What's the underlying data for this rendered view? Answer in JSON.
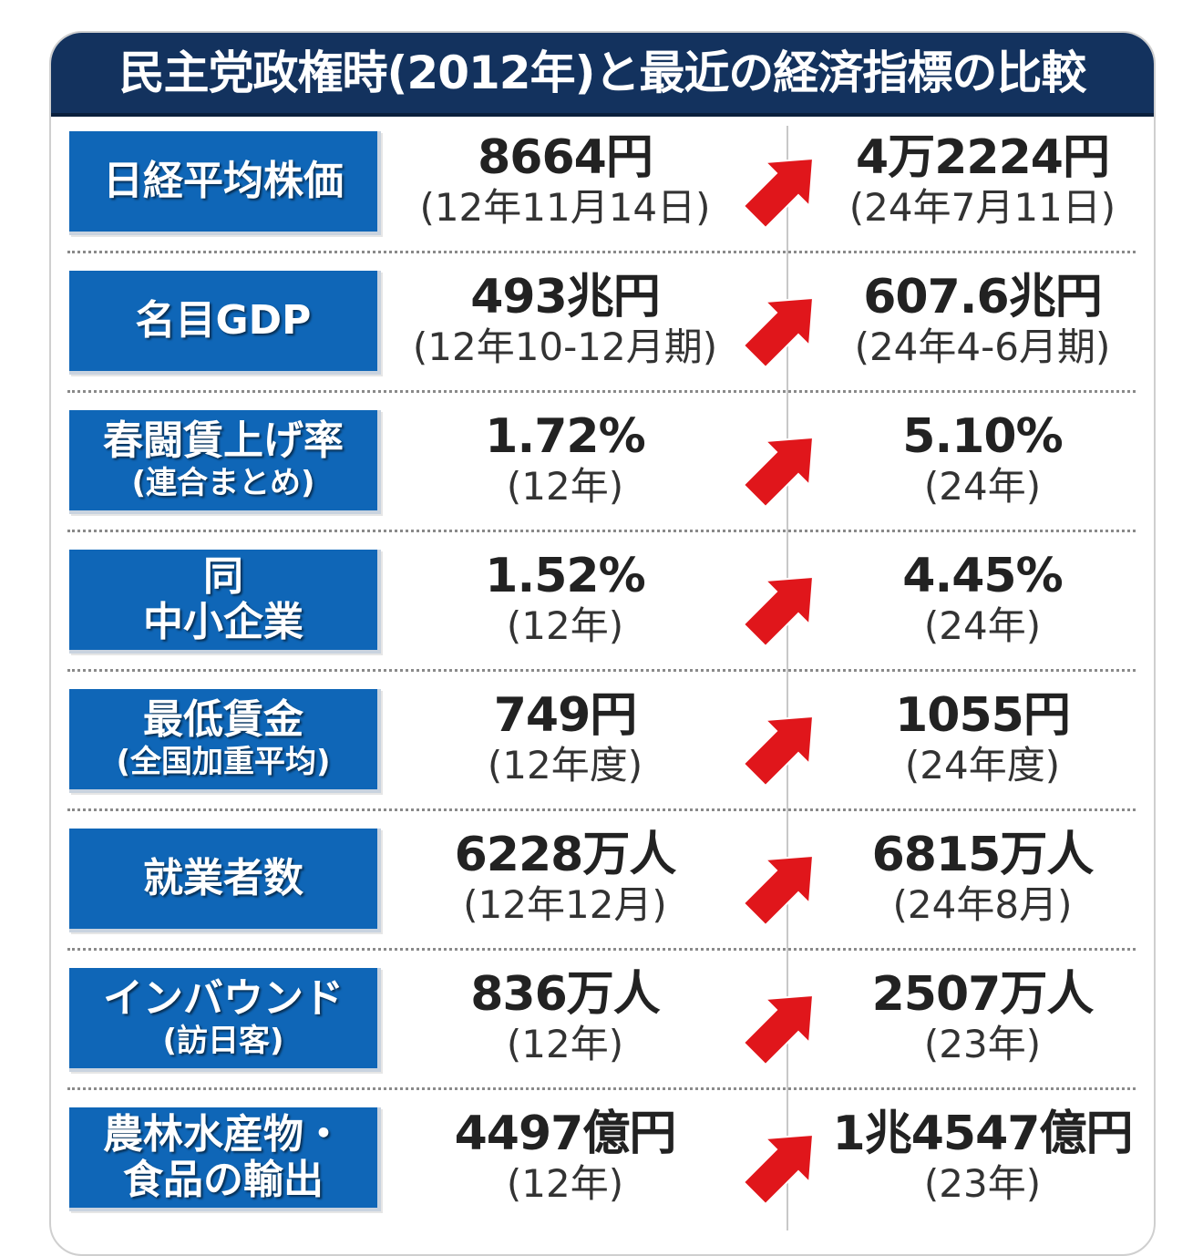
{
  "title": "民主党政権時(2012年)と最近の経済指標の比較",
  "colors": {
    "title_bg": "#13325e",
    "label_bg": "#0f66b7",
    "arrow": "#e0161b",
    "value_text": "#222222"
  },
  "arrow_icon": "red-up-right-arrow",
  "rows": [
    {
      "label": "日経平均株価",
      "sublabel": "",
      "old_value": "8664円",
      "old_date": "(12年11月14日)",
      "new_value": "4万2224円",
      "new_date": "(24年7月11日)"
    },
    {
      "label": "名目GDP",
      "sublabel": "",
      "old_value": "493兆円",
      "old_date": "(12年10-12月期)",
      "new_value": "607.6兆円",
      "new_date": "(24年4-6月期)"
    },
    {
      "label": "春闘賃上げ率",
      "sublabel": "(連合まとめ)",
      "old_value": "1.72%",
      "old_date": "(12年)",
      "new_value": "5.10%",
      "new_date": "(24年)"
    },
    {
      "label": "同",
      "sublabel": "中小企業",
      "old_value": "1.52%",
      "old_date": "(12年)",
      "new_value": "4.45%",
      "new_date": "(24年)"
    },
    {
      "label": "最低賃金",
      "sublabel": "(全国加重平均)",
      "old_value": "749円",
      "old_date": "(12年度)",
      "new_value": "1055円",
      "new_date": "(24年度)"
    },
    {
      "label": "就業者数",
      "sublabel": "",
      "old_value": "6228万人",
      "old_date": "(12年12月)",
      "new_value": "6815万人",
      "new_date": "(24年8月)"
    },
    {
      "label": "インバウンド",
      "sublabel": "(訪日客)",
      "old_value": "836万人",
      "old_date": "(12年)",
      "new_value": "2507万人",
      "new_date": "(23年)"
    },
    {
      "label": "農林水産物・",
      "sublabel": "食品の輸出",
      "old_value": "4497億円",
      "old_date": "(12年)",
      "new_value": "1兆4547億円",
      "new_date": "(23年)"
    }
  ]
}
